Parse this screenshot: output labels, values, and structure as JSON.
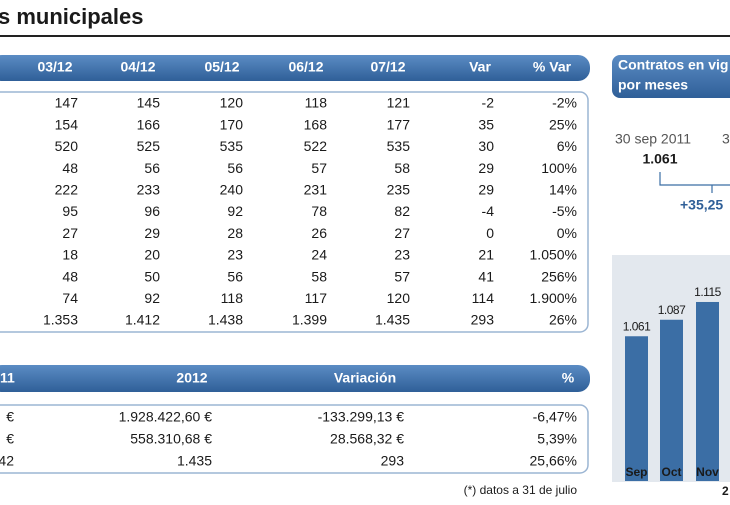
{
  "title": "s municipales",
  "table1": {
    "header": [
      "03/12",
      "04/12",
      "05/12",
      "06/12",
      "07/12",
      "Var",
      "% Var"
    ],
    "rows": [
      [
        "147",
        "145",
        "120",
        "118",
        "121",
        "-2",
        "-2%"
      ],
      [
        "154",
        "166",
        "170",
        "168",
        "177",
        "35",
        "25%"
      ],
      [
        "520",
        "525",
        "535",
        "522",
        "535",
        "30",
        "6%"
      ],
      [
        "48",
        "56",
        "56",
        "57",
        "58",
        "29",
        "100%"
      ],
      [
        "222",
        "233",
        "240",
        "231",
        "235",
        "29",
        "14%"
      ],
      [
        "95",
        "96",
        "92",
        "78",
        "82",
        "-4",
        "-5%"
      ],
      [
        "27",
        "29",
        "28",
        "26",
        "27",
        "0",
        "0%"
      ],
      [
        "18",
        "20",
        "23",
        "24",
        "23",
        "21",
        "1.050%"
      ],
      [
        "48",
        "50",
        "56",
        "58",
        "57",
        "41",
        "256%"
      ],
      [
        "74",
        "92",
        "118",
        "117",
        "120",
        "114",
        "1.900%"
      ],
      [
        "1.353",
        "1.412",
        "1.438",
        "1.399",
        "1.435",
        "293",
        "26%"
      ]
    ]
  },
  "table2": {
    "header": [
      "11",
      "2012",
      "Variación",
      "%"
    ],
    "rows": [
      [
        "€",
        "1.928.422,60 €",
        "-133.299,13 €",
        "-6,47%"
      ],
      [
        "€",
        "558.310,68 €",
        "28.568,32 €",
        "5,39%"
      ],
      [
        "42",
        "1.435",
        "293",
        "25,66%"
      ]
    ]
  },
  "footnote": "(*) datos a 31 de julio",
  "side": {
    "header": [
      "Contratos en vig",
      "por meses"
    ],
    "start_date": "30 sep 2011",
    "start_value": "1.061",
    "end_date": "3",
    "change": "+35,25",
    "year": "2"
  },
  "chart_data": {
    "type": "bar",
    "categories": [
      "Sep",
      "Oct",
      "Nov"
    ],
    "values": [
      1061,
      1087,
      1115
    ],
    "value_labels": [
      "1.061",
      "1.087",
      "1.115"
    ],
    "color": "#3b6ea5",
    "ylim": [
      833,
      1189
    ]
  }
}
